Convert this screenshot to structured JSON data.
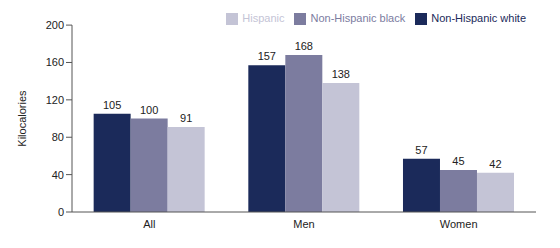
{
  "chart_data": {
    "type": "bar",
    "categories": [
      "All",
      "Men",
      "Women"
    ],
    "series": [
      {
        "name": "Non-Hispanic white",
        "color": "#1b2a5a",
        "values": [
          105,
          157,
          57
        ]
      },
      {
        "name": "Non-Hispanic black",
        "color": "#7c7c9f",
        "values": [
          100,
          168,
          45
        ]
      },
      {
        "name": "Hispanic",
        "color": "#c4c4d6",
        "values": [
          91,
          138,
          42
        ]
      }
    ],
    "y_label": "Kilocalories",
    "ylim": [
      0,
      200
    ],
    "yticks": [
      0,
      40,
      80,
      120,
      160,
      200
    ],
    "data_labels": true,
    "legend": "upper right",
    "grid": false
  }
}
